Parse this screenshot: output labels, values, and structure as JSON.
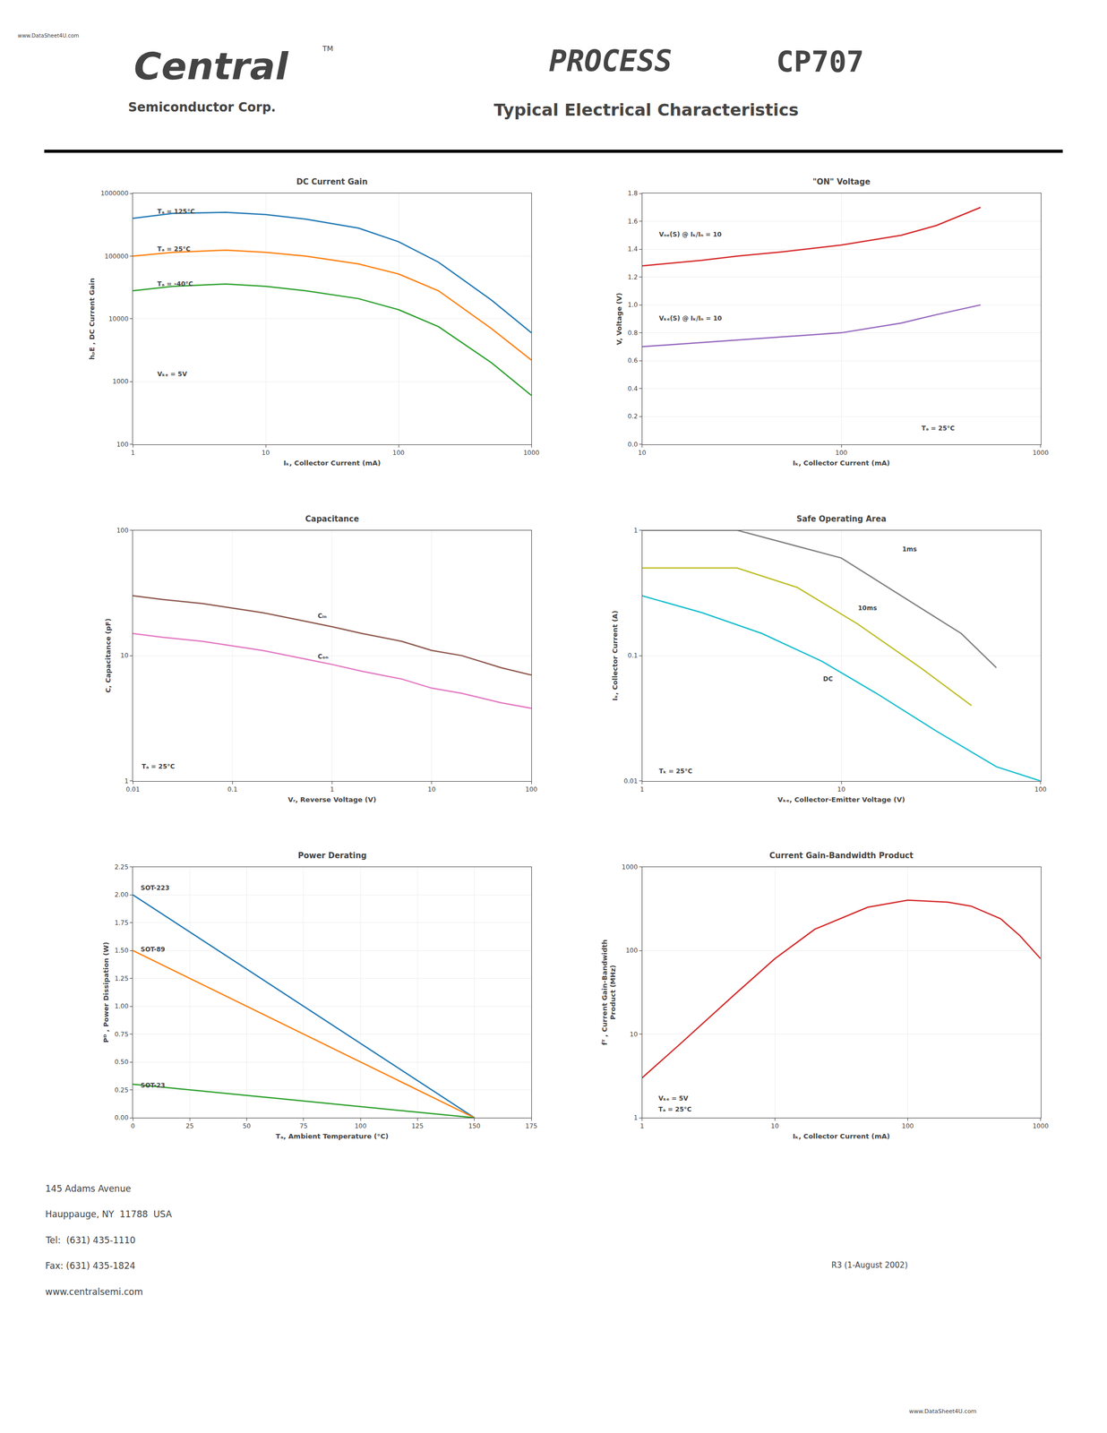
{
  "annotations": [
    "www.DataSheet4U.com",
    "Central",
    "TM",
    "Semiconductor Corp.",
    "PROCESS",
    "CP707",
    "Typical Electrical Characteristics",
    "145 Adams Avenue",
    "Hauppauge, NY  11788  USA",
    "Tel:  (631) 435-1110",
    "Fax: (631) 435-1824",
    "www.centralsemi.com",
    "R3 (1-August 2002)",
    "www.DataSheet4U.com"
  ],
  "chart_data": [
    {
      "type": "line",
      "title": "DC Current Gain",
      "xlabel": "Iₖ, Collector Current (mA)",
      "ylabel": "hₚE , DC Current Gain",
      "log": true,
      "grid": true,
      "xlim": [
        1,
        1000
      ],
      "ylim": [
        100,
        1000000
      ],
      "xticks": [
        1,
        10,
        100,
        1000
      ],
      "yticks": [
        100,
        1000,
        10000,
        100000,
        1000000
      ],
      "x": [
        1,
        2,
        5,
        10,
        20,
        50,
        100,
        200,
        500,
        1000
      ],
      "series": [
        {
          "values": [
            400000,
            480000,
            500000,
            460000,
            390000,
            280000,
            170000,
            80000,
            20000,
            6000
          ]
        },
        {
          "values": [
            100000,
            115000,
            125000,
            115000,
            100000,
            75000,
            52000,
            28000,
            7000,
            2200
          ]
        },
        {
          "values": [
            28000,
            33000,
            36000,
            33000,
            28000,
            21000,
            14000,
            7500,
            2000,
            600
          ]
        }
      ],
      "annotations": [
        {
          "text": "Tₐ = 125°C",
          "x": 1.5,
          "y": 430000
        },
        {
          "text": "Tₐ = 25°C",
          "x": 1.5,
          "y": 110000
        },
        {
          "text": "Tₐ = -40°C",
          "x": 1.5,
          "y": 30000
        },
        {
          "text": "Vₖₑ = 5V",
          "x": 1.5,
          "y": 1100
        }
      ]
    },
    {
      "type": "line",
      "title": "\"ON\" Voltage",
      "xlabel": "Iₖ, Collector Current (mA)",
      "ylabel": "V, Voltage (V)",
      "log": "x",
      "grid": true,
      "xlim": [
        10,
        1000
      ],
      "ylim": [
        0,
        1.8
      ],
      "xticks": [
        10,
        100,
        1000
      ],
      "yticks": [
        {
          "value": 0,
          "label": "0.0"
        },
        0.2,
        0.4,
        0.6,
        0.8,
        {
          "value": 1.0,
          "label": "1.0"
        },
        1.2,
        1.4,
        1.6,
        1.8
      ],
      "x": [
        10,
        20,
        30,
        50,
        100,
        200,
        300,
        500
      ],
      "series": [
        {
          "values": [
            1.28,
            1.32,
            1.35,
            1.38,
            1.43,
            1.5,
            1.57,
            1.7
          ]
        },
        {
          "values": [
            0.7,
            0.73,
            0.75,
            0.77,
            0.8,
            0.87,
            0.93,
            1.0
          ]
        }
      ],
      "annotations": [
        {
          "text": "Vₙₑ(S) @ Iₖ/Iₙ = 10",
          "x": 12,
          "y": 1.47
        },
        {
          "text": "Vₖₑ(S) @ Iₖ/Iₙ = 10",
          "x": 12,
          "y": 0.87
        },
        {
          "text": "Tₐ = 25°C",
          "x": 250,
          "y": 0.08
        }
      ]
    },
    {
      "type": "line",
      "title": "Capacitance",
      "xlabel": "Vᵣ, Reverse Voltage (V)",
      "ylabel": "C, Capacitance (pF)",
      "log": true,
      "grid": true,
      "xlim": [
        0.01,
        100
      ],
      "ylim": [
        1,
        100
      ],
      "xticks": [
        0.01,
        0.1,
        1,
        10,
        100
      ],
      "yticks": [
        1,
        10,
        100
      ],
      "x": [
        0.01,
        0.02,
        0.05,
        0.1,
        0.2,
        0.5,
        1.0,
        2.0,
        5.0,
        10,
        20,
        50,
        100
      ],
      "series": [
        {
          "values": [
            30,
            28,
            26,
            24,
            22,
            19,
            17,
            15,
            13,
            11,
            10,
            8,
            7
          ]
        },
        {
          "values": [
            15,
            14,
            13,
            12,
            11,
            9.5,
            8.5,
            7.5,
            6.5,
            5.5,
            5.0,
            4.2,
            3.8
          ]
        }
      ],
      "annotations": [
        {
          "text": "Cᵢₙ",
          "x": 0.7,
          "y": 19
        },
        {
          "text": "Cₒₙ",
          "x": 0.7,
          "y": 9
        },
        {
          "text": "Tₐ = 25°C",
          "x": 0.012,
          "y": 1.2
        }
      ]
    },
    {
      "type": "line",
      "title": "Safe Operating Area",
      "xlabel": "Vₖₑ, Collector-Emitter Voltage (V)",
      "ylabel": "Iₖ, Collector Current (A)",
      "log": true,
      "grid": true,
      "xlim": [
        1,
        100
      ],
      "ylim": [
        0.01,
        1
      ],
      "xticks": [
        1,
        10,
        100
      ],
      "yticks": [
        0.01,
        0.1,
        1
      ],
      "series": [
        {
          "x": [
            1,
            3,
            10,
            20,
            40,
            60
          ],
          "values": [
            1,
            1,
            0.6,
            0.3,
            0.15,
            0.08
          ]
        },
        {
          "x": [
            1,
            3,
            6,
            12,
            25,
            45
          ],
          "values": [
            0.5,
            0.5,
            0.35,
            0.18,
            0.08,
            0.04
          ]
        },
        {
          "x": [
            1,
            2,
            4,
            8,
            15,
            30,
            60,
            100
          ],
          "values": [
            0.3,
            0.22,
            0.15,
            0.09,
            0.05,
            0.025,
            0.013,
            0.01
          ]
        }
      ],
      "annotations": [
        {
          "text": "1ms",
          "x": 20,
          "y": 0.65
        },
        {
          "text": "10ms",
          "x": 12,
          "y": 0.22
        },
        {
          "text": "DC",
          "x": 8,
          "y": 0.06
        },
        {
          "text": "Tₖ = 25°C",
          "x": 1.2,
          "y": 0.011
        }
      ]
    },
    {
      "type": "line",
      "title": "Power Derating",
      "xlabel": "Tₐ, Ambient Temperature (°C)",
      "ylabel": "Pᴰ , Power Dissipation (W)",
      "grid": true,
      "xlim": [
        0,
        175
      ],
      "ylim": [
        0,
        2.25
      ],
      "xticks": [
        0,
        25,
        50,
        75,
        100,
        125,
        150,
        175
      ],
      "yticks": [
        {
          "value": 0,
          "label": "0.00"
        },
        0.25,
        {
          "value": 0.5,
          "label": "0.50"
        },
        0.75,
        {
          "value": 1.0,
          "label": "1.00"
        },
        1.25,
        {
          "value": 1.5,
          "label": "1.50"
        },
        1.75,
        {
          "value": 2.0,
          "label": "2.00"
        },
        2.25
      ],
      "series": [
        {
          "x": [
            0,
            150
          ],
          "values": [
            2.0,
            0.0
          ]
        },
        {
          "x": [
            0,
            150
          ],
          "values": [
            1.5,
            0.0
          ]
        },
        {
          "x": [
            0,
            150
          ],
          "values": [
            0.3,
            0.0
          ]
        }
      ],
      "annotations": [
        {
          "text": "SOT-223",
          "x": 3,
          "y": 2.02
        },
        {
          "text": "SOT-89",
          "x": 3,
          "y": 1.47
        },
        {
          "text": "SOT-23",
          "x": 3,
          "y": 0.25
        }
      ]
    },
    {
      "type": "line",
      "title": "Current Gain-Bandwidth Product",
      "xlabel": "Iₖ, Collector Current (mA)",
      "ylabel": "fᵀ , Current Gain-Bandwidth\nProduct (MHz)",
      "log": true,
      "grid": true,
      "xlim": [
        1,
        1000
      ],
      "ylim": [
        1,
        1000
      ],
      "xticks": [
        1,
        10,
        100,
        1000
      ],
      "yticks": [
        1,
        10,
        100,
        1000
      ],
      "x": [
        1,
        2,
        5,
        10,
        20,
        50,
        100,
        200,
        300,
        500,
        700,
        1000
      ],
      "series": [
        {
          "values": [
            3,
            8,
            30,
            80,
            180,
            330,
            400,
            380,
            340,
            240,
            150,
            80
          ]
        }
      ],
      "annotations": [
        {
          "text": "Vₖₑ = 5V",
          "x": 1.3,
          "y": 1.5
        },
        {
          "text": "Tₐ = 25°C",
          "x": 1.3,
          "y": 1.1
        }
      ]
    }
  ]
}
